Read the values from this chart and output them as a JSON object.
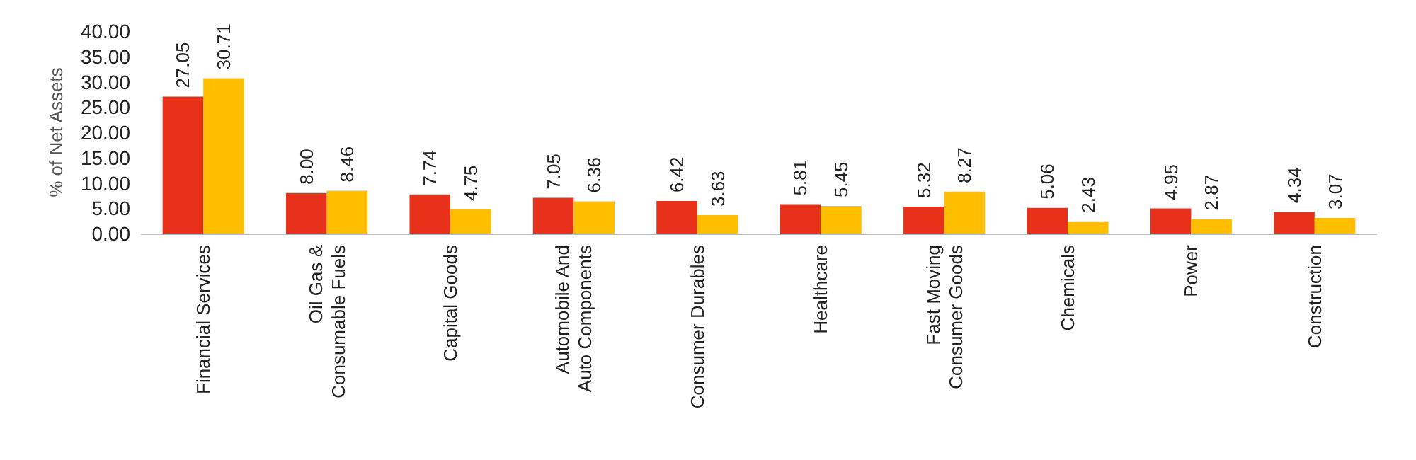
{
  "chart_data": {
    "type": "bar",
    "ylabel": "% of Net Assets",
    "categories": [
      "Financial Services",
      "Oil Gas &\nConsumable Fuels",
      "Capital Goods",
      "Automobile And\nAuto Components",
      "Consumer Durables",
      "Healthcare",
      "Fast Moving\nConsumer Goods",
      "Chemicals",
      "Power",
      "Construction"
    ],
    "series": [
      {
        "color": "#e8311a",
        "values": [
          27.05,
          8.0,
          7.74,
          7.05,
          6.42,
          5.81,
          5.32,
          5.06,
          4.95,
          4.34
        ],
        "value_labels": [
          "27.05",
          "8.00",
          "7.74",
          "7.05",
          "6.42",
          "5.81",
          "5.32",
          "5.06",
          "4.95",
          "4.34"
        ]
      },
      {
        "color": "#ffbf00",
        "values": [
          30.71,
          8.46,
          4.75,
          6.36,
          3.63,
          5.45,
          8.27,
          2.43,
          2.87,
          3.07
        ],
        "value_labels": [
          "30.71",
          "8.46",
          "4.75",
          "6.36",
          "3.63",
          "5.45",
          "8.27",
          "2.43",
          "2.87",
          "3.07"
        ]
      }
    ],
    "ylim": [
      0,
      40
    ],
    "yticks": [
      {
        "value": 0,
        "label": "0.00"
      },
      {
        "value": 5,
        "label": "5.00"
      },
      {
        "value": 10,
        "label": "10.00"
      },
      {
        "value": 15,
        "label": "15.00"
      },
      {
        "value": 20,
        "label": "20.00"
      },
      {
        "value": 25,
        "label": "25.00"
      },
      {
        "value": 30,
        "label": "30.00"
      },
      {
        "value": 35,
        "label": "35.00"
      },
      {
        "value": 40,
        "label": "40.00"
      }
    ],
    "grid": false
  }
}
